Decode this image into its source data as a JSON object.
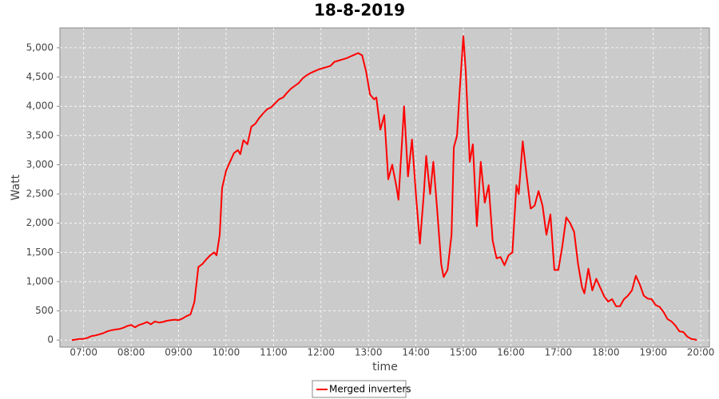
{
  "chart_data": {
    "type": "line",
    "title": "18-8-2019",
    "x_label": "time",
    "y_label": "Watt",
    "xlim": [
      "06:30",
      "20:11"
    ],
    "xticks": [
      "07:00",
      "08:00",
      "09:00",
      "10:00",
      "11:00",
      "12:00",
      "13:00",
      "14:00",
      "15:00",
      "16:00",
      "17:00",
      "18:00",
      "19:00",
      "20:00"
    ],
    "ylim": [
      -120,
      5340
    ],
    "yticks": [
      0,
      500,
      {
        "value": 1000,
        "label": "1,000"
      },
      {
        "value": 1500,
        "label": "1,500"
      },
      {
        "value": 2000,
        "label": "2,000"
      },
      {
        "value": 2500,
        "label": "2,500"
      },
      {
        "value": 3000,
        "label": "3,000"
      },
      {
        "value": 3500,
        "label": "3,500"
      },
      {
        "value": 4000,
        "label": "4,000"
      },
      {
        "value": 4500,
        "label": "4,500"
      },
      {
        "value": 5000,
        "label": "5,000"
      }
    ],
    "grid": true,
    "legend": "bottom",
    "x": [
      "06:45",
      "06:50",
      "06:55",
      "07:00",
      "07:05",
      "07:10",
      "07:15",
      "07:20",
      "07:25",
      "07:30",
      "07:35",
      "07:40",
      "07:45",
      "07:50",
      "07:55",
      "08:00",
      "08:05",
      "08:10",
      "08:15",
      "08:20",
      "08:25",
      "08:30",
      "08:35",
      "08:40",
      "08:45",
      "08:50",
      "08:55",
      "09:00",
      "09:05",
      "09:10",
      "09:15",
      "09:20",
      "09:25",
      "09:30",
      "09:35",
      "09:40",
      "09:45",
      "09:48",
      "09:52",
      "09:55",
      "10:00",
      "10:05",
      "10:10",
      "10:15",
      "10:18",
      "10:22",
      "10:27",
      "10:32",
      "10:37",
      "10:42",
      "10:47",
      "10:52",
      "10:57",
      "11:02",
      "11:07",
      "11:12",
      "11:17",
      "11:22",
      "11:27",
      "11:32",
      "11:37",
      "11:42",
      "11:47",
      "11:52",
      "11:57",
      "12:02",
      "12:07",
      "12:12",
      "12:17",
      "12:22",
      "12:27",
      "12:32",
      "12:37",
      "12:42",
      "12:47",
      "12:52",
      "12:57",
      "13:02",
      "13:07",
      "13:10",
      "13:15",
      "13:20",
      "13:25",
      "13:30",
      "13:35",
      "13:38",
      "13:42",
      "13:45",
      "13:50",
      "13:55",
      "14:00",
      "14:05",
      "14:10",
      "14:13",
      "14:18",
      "14:22",
      "14:27",
      "14:32",
      "14:35",
      "14:40",
      "14:45",
      "14:48",
      "14:52",
      "14:55",
      "15:00",
      "15:03",
      "15:08",
      "15:12",
      "15:17",
      "15:22",
      "15:27",
      "15:32",
      "15:37",
      "15:42",
      "15:47",
      "15:52",
      "15:57",
      "16:02",
      "16:07",
      "16:10",
      "16:15",
      "16:20",
      "16:25",
      "16:30",
      "16:35",
      "16:40",
      "16:45",
      "16:50",
      "16:55",
      "17:00",
      "17:05",
      "17:10",
      "17:15",
      "17:20",
      "17:25",
      "17:30",
      "17:33",
      "17:38",
      "17:43",
      "17:48",
      "17:53",
      "17:58",
      "18:03",
      "18:08",
      "18:13",
      "18:18",
      "18:23",
      "18:28",
      "18:33",
      "18:38",
      "18:43",
      "18:48",
      "18:53",
      "18:58",
      "19:03",
      "19:08",
      "19:13",
      "19:18",
      "19:23",
      "19:28",
      "19:33",
      "19:38",
      "19:43",
      "19:48",
      "19:53",
      "19:55"
    ],
    "series": [
      {
        "name": "Merged inverters",
        "color": "#ff0000",
        "values": [
          0,
          10,
          20,
          20,
          40,
          70,
          80,
          100,
          120,
          150,
          170,
          180,
          190,
          210,
          240,
          260,
          220,
          260,
          280,
          310,
          270,
          320,
          300,
          310,
          330,
          340,
          350,
          340,
          370,
          410,
          440,
          650,
          1250,
          1300,
          1380,
          1450,
          1500,
          1450,
          1800,
          2600,
          2900,
          3050,
          3200,
          3250,
          3180,
          3420,
          3350,
          3650,
          3700,
          3800,
          3880,
          3950,
          3980,
          4050,
          4120,
          4150,
          4230,
          4300,
          4350,
          4400,
          4480,
          4530,
          4570,
          4600,
          4630,
          4650,
          4670,
          4690,
          4760,
          4780,
          4800,
          4820,
          4850,
          4880,
          4910,
          4870,
          4600,
          4200,
          4120,
          4150,
          3600,
          3850,
          2750,
          3000,
          2650,
          2400,
          3300,
          4000,
          2800,
          3430,
          2500,
          1650,
          2500,
          3150,
          2500,
          3050,
          2200,
          1300,
          1080,
          1200,
          1800,
          3300,
          3500,
          4200,
          5200,
          4600,
          3050,
          3350,
          1950,
          3050,
          2350,
          2650,
          1700,
          1400,
          1420,
          1280,
          1450,
          1500,
          2650,
          2500,
          3400,
          2800,
          2250,
          2300,
          2550,
          2300,
          1800,
          2150,
          1200,
          1200,
          1600,
          2100,
          2000,
          1850,
          1300,
          900,
          800,
          1220,
          850,
          1050,
          900,
          750,
          660,
          700,
          580,
          580,
          700,
          760,
          850,
          1100,
          950,
          760,
          710,
          700,
          600,
          570,
          480,
          360,
          320,
          250,
          150,
          140,
          60,
          20,
          10,
          0
        ]
      }
    ]
  }
}
